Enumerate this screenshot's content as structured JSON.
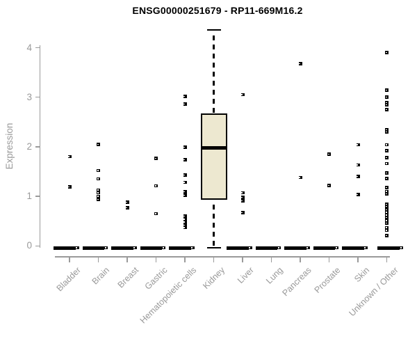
{
  "title": "ENSG00000251679 - RP11-669M16.2",
  "colors": {
    "background": "#ffffff",
    "axis": "#9a9a9a",
    "muted_text": "#999999",
    "title_text": "#000000",
    "marker": "#000000",
    "box_fill": "#ede8d0",
    "box_border": "#000000"
  },
  "chart_data": {
    "type": "boxplot",
    "title": "ENSG00000251679 - RP11-669M16.2",
    "xlabel": "",
    "ylabel": "Expression",
    "ylim": [
      0,
      4.4
    ],
    "yticks": [
      "0",
      "1",
      "2",
      "3",
      "4"
    ],
    "grid": false,
    "legend": false,
    "categories": [
      "Bladder",
      "Brain",
      "Breast",
      "Gastric",
      "Hematopoietic cells",
      "Kidney",
      "Liver",
      "Lung",
      "Pancreas",
      "Prostate",
      "Skin",
      "Unknown / Other"
    ],
    "series": [
      {
        "category": "Bladder",
        "zero_cluster": true,
        "points": [
          1.8,
          1.19
        ]
      },
      {
        "category": "Brain",
        "zero_cluster": true,
        "points": [
          2.05,
          1.52,
          1.35,
          1.13,
          1.07,
          1.0,
          0.94
        ]
      },
      {
        "category": "Breast",
        "zero_cluster": true,
        "points": [
          0.88,
          0.77
        ]
      },
      {
        "category": "Gastric",
        "zero_cluster": true,
        "points": [
          1.77,
          1.21,
          0.65
        ]
      },
      {
        "category": "Hematopoietic cells",
        "zero_cluster": true,
        "points": [
          3.02,
          2.86,
          1.99,
          1.74,
          1.43,
          1.28,
          1.09,
          1.02,
          0.6,
          0.54,
          0.48,
          0.42,
          0.37
        ]
      },
      {
        "category": "Kidney",
        "zero_cluster": false,
        "points": [],
        "box": {
          "min": 0,
          "q1": 0.93,
          "median": 1.98,
          "q3": 2.67,
          "max": 4.36
        }
      },
      {
        "category": "Liver",
        "zero_cluster": true,
        "points": [
          3.05,
          1.07,
          0.98,
          0.91,
          0.67
        ]
      },
      {
        "category": "Lung",
        "zero_cluster": true,
        "points": []
      },
      {
        "category": "Pancreas",
        "zero_cluster": true,
        "points": [
          3.68,
          1.38
        ]
      },
      {
        "category": "Prostate",
        "zero_cluster": true,
        "points": [
          1.85,
          1.22
        ]
      },
      {
        "category": "Skin",
        "zero_cluster": true,
        "points": [
          2.04,
          1.63,
          1.4,
          1.04
        ]
      },
      {
        "category": "Unknown / Other",
        "zero_cluster": true,
        "zero_bar_wide": true,
        "points": [
          3.9,
          3.14,
          3.0,
          2.89,
          2.85,
          2.75,
          2.34,
          2.3,
          2.04,
          1.92,
          1.78,
          1.66,
          1.47,
          1.36,
          1.18,
          1.1,
          1.05,
          0.84,
          0.8,
          0.73,
          0.68,
          0.62,
          0.57,
          0.51,
          0.46,
          0.37,
          0.31,
          0.21
        ]
      }
    ]
  }
}
